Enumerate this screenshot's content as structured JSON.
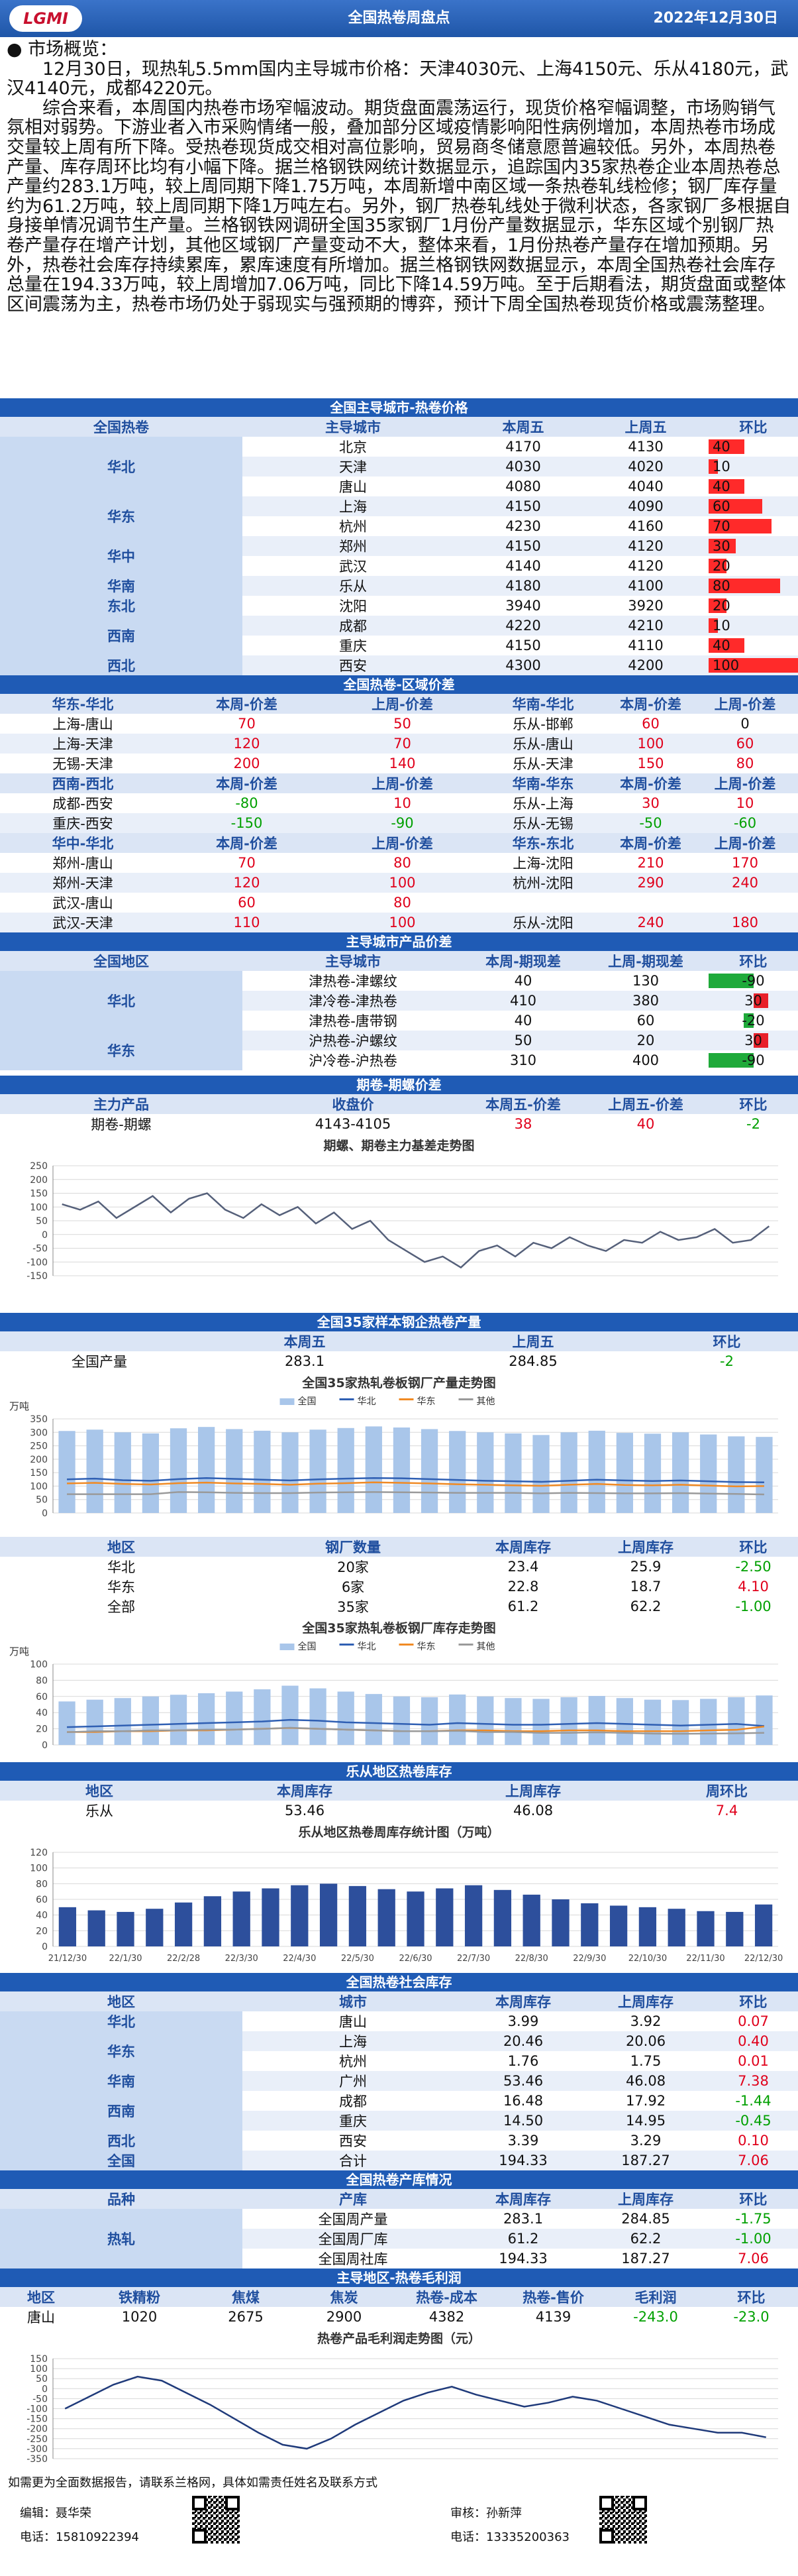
{
  "header": {
    "logo": "LGMI",
    "title": "全国热卷周盘点",
    "date": "2022年12月30日"
  },
  "overview": {
    "heading": "市场概览：",
    "paragraphs": [
      "12月30日，现热轧5.5mm国内主导城市价格：天津4030元、上海4150元、乐从4180元，武汉4140元，成都4220元。",
      "综合来看，本周国内热卷市场窄幅波动。期货盘面震荡运行，现货价格窄幅调整，市场购销气氛相对弱势。下游业者入市采购情绪一般，叠加部分区域疫情影响阳性病例增加，本周热卷市场成交量较上周有所下降。受热卷现货成交相对高位影响，贸易商冬储意愿普遍较低。另外，本周热卷产量、库存周环比均有小幅下降。据兰格钢铁网统计数据显示，追踪国内35家热卷企业本周热卷总产量约283.1万吨，较上周同期下降1.75万吨，本周新增中南区域一条热卷轧线检修；钢厂库存量约为61.2万吨，较上周同期下降1万吨左右。另外，钢厂热卷轧线处于微利状态，各家钢厂多根据自身接单情况调节生产量。兰格钢铁网调研全国35家钢厂1月份产量数据显示，华东区域个别钢厂热卷产量存在增产计划，其他区域钢厂产量变动不大，整体来看，1月份热卷产量存在增加预期。另外，热卷社会库存持续累库，累库速度有所增加。据兰格钢铁网数据显示，本周全国热卷社会库存总量在194.33万吨，较上周增加7.06万吨，同比下降14.59万吨。至于后期看法，期货盘面或整体区间震荡为主，热卷市场仍处于弱现实与强预期的博弈，预计下周全国热卷现货价格或震荡整理。"
    ]
  },
  "city_prices": {
    "title": "全国主导城市-热卷价格",
    "columns": [
      "全国热卷",
      "主导城市",
      "本周五",
      "上周五",
      "环比"
    ],
    "groups": [
      {
        "region": "华北",
        "rows": [
          [
            "北京",
            4170,
            4130,
            40
          ],
          [
            "天津",
            4030,
            4020,
            10
          ],
          [
            "唐山",
            4080,
            4040,
            40
          ]
        ]
      },
      {
        "region": "华东",
        "rows": [
          [
            "上海",
            4150,
            4090,
            60
          ],
          [
            "杭州",
            4230,
            4160,
            70
          ]
        ]
      },
      {
        "region": "华中",
        "rows": [
          [
            "郑州",
            4150,
            4120,
            30
          ],
          [
            "武汉",
            4140,
            4120,
            20
          ]
        ]
      },
      {
        "region": "华南",
        "rows": [
          [
            "乐从",
            4180,
            4100,
            80
          ]
        ]
      },
      {
        "region": "东北",
        "rows": [
          [
            "沈阳",
            3940,
            3920,
            20
          ]
        ]
      },
      {
        "region": "西南",
        "rows": [
          [
            "成都",
            4220,
            4210,
            10
          ],
          [
            "重庆",
            4150,
            4110,
            40
          ]
        ]
      },
      {
        "region": "西北",
        "rows": [
          [
            "西安",
            4300,
            4200,
            100
          ]
        ]
      }
    ]
  },
  "region_spreads": {
    "title": "全国热卷-区域价差",
    "blocks": [
      {
        "headers": [
          "华东-华北",
          "本周-价差",
          "上周-价差",
          "华南-华北",
          "本周-价差",
          "上周-价差"
        ],
        "left": [
          [
            "上海-唐山",
            70,
            50
          ],
          [
            "上海-天津",
            120,
            70
          ],
          [
            "无锡-天津",
            200,
            140
          ]
        ],
        "right": [
          [
            "乐从-邯郸",
            60,
            0
          ],
          [
            "乐从-唐山",
            100,
            60
          ],
          [
            "乐从-天津",
            150,
            80
          ]
        ]
      },
      {
        "headers": [
          "西南-西北",
          "本周-价差",
          "上周-价差",
          "华南-华东",
          "本周-价差",
          "上周-价差"
        ],
        "left": [
          [
            "成都-西安",
            -80,
            10
          ],
          [
            "重庆-西安",
            -150,
            -90
          ]
        ],
        "right": [
          [
            "乐从-上海",
            30,
            10
          ],
          [
            "乐从-无锡",
            -50,
            -60
          ]
        ]
      },
      {
        "headers": [
          "华中-华北",
          "本周-价差",
          "上周-价差",
          "华东-东北",
          "本周-价差",
          "上周-价差"
        ],
        "left": [
          [
            "郑州-唐山",
            70,
            80
          ],
          [
            "郑州-天津",
            120,
            100
          ],
          [
            "武汉-唐山",
            60,
            80
          ],
          [
            "武汉-天津",
            110,
            100
          ]
        ],
        "right": [
          [
            "上海-沈阳",
            210,
            170
          ],
          [
            "杭州-沈阳",
            290,
            240
          ],
          null,
          [
            "乐从-沈阳",
            240,
            180
          ]
        ]
      }
    ]
  },
  "product_spreads": {
    "title": "主导城市产品价差",
    "columns": [
      "全国地区",
      "主导城市",
      "本周-期现差",
      "上周-期现差",
      "环比"
    ],
    "groups": [
      {
        "region": "华北",
        "rows": [
          [
            "津热卷-津螺纹",
            40,
            130,
            -90
          ],
          [
            "津冷卷-津热卷",
            410,
            380,
            30
          ],
          [
            "津热卷-唐带钢",
            40,
            60,
            -20
          ]
        ]
      },
      {
        "region": "华东",
        "rows": [
          [
            "沪热卷-沪螺纹",
            50,
            20,
            30
          ],
          [
            "沪冷卷-沪热卷",
            310,
            400,
            -90
          ]
        ]
      }
    ]
  },
  "futures_spread": {
    "title": "期卷-期螺价差",
    "columns": [
      "主力产品",
      "收盘价",
      "本周五-价差",
      "上周五-价差",
      "环比"
    ],
    "rows": [
      [
        "期卷-期螺",
        "4143-4105",
        38,
        40,
        -2
      ]
    ],
    "chart": {
      "type": "line",
      "title": "期螺、期卷主力基差走势图",
      "ylim": [
        -150,
        250
      ],
      "yticks": [
        250,
        200,
        150,
        100,
        50,
        0,
        -50,
        -100,
        -150
      ],
      "series": [
        {
          "name": "基差",
          "color": "#55607a",
          "values": [
            110,
            90,
            120,
            60,
            100,
            140,
            80,
            130,
            150,
            90,
            60,
            110,
            70,
            100,
            40,
            80,
            20,
            50,
            -20,
            -60,
            -100,
            -80,
            -120,
            -60,
            -40,
            -80,
            -30,
            -50,
            -10,
            -40,
            -60,
            -20,
            -30,
            10,
            -20,
            -10,
            20,
            -30,
            -20,
            30
          ]
        }
      ]
    }
  },
  "output": {
    "title": "全国35家样本钢企热卷产量",
    "columns": [
      "本周五",
      "上周五",
      "环比"
    ],
    "rows": [
      [
        "全国产量",
        283.1,
        284.85,
        -2
      ]
    ],
    "chart": {
      "type": "bar",
      "title": "全国35家热轧卷板钢厂产量走势图",
      "y_label": "万吨",
      "ylim": [
        0,
        350
      ],
      "yticks": [
        350,
        300,
        250,
        200,
        150,
        100,
        50,
        0
      ],
      "series": [
        {
          "name": "全国",
          "type": "bar",
          "color": "#a9c6ea",
          "values": [
            305,
            310,
            300,
            296,
            315,
            320,
            312,
            306,
            300,
            310,
            316,
            322,
            318,
            312,
            305,
            300,
            296,
            290,
            300,
            306,
            298,
            295,
            300,
            292,
            285,
            283
          ]
        },
        {
          "name": "华北",
          "type": "line",
          "color": "#2f5fb3",
          "values": [
            125,
            128,
            122,
            120,
            126,
            130,
            127,
            124,
            121,
            125,
            128,
            130,
            129,
            126,
            123,
            120,
            118,
            116,
            120,
            124,
            121,
            119,
            121,
            118,
            115,
            114
          ]
        },
        {
          "name": "华东",
          "type": "line",
          "color": "#f08a24",
          "values": [
            110,
            112,
            108,
            106,
            111,
            113,
            110,
            108,
            105,
            109,
            111,
            114,
            112,
            110,
            107,
            105,
            103,
            101,
            105,
            108,
            104,
            103,
            105,
            102,
            99,
            100
          ]
        },
        {
          "name": "其他",
          "type": "line",
          "color": "#9a9a9a",
          "values": [
            70,
            70,
            70,
            70,
            78,
            77,
            75,
            74,
            74,
            76,
            77,
            78,
            77,
            76,
            75,
            75,
            75,
            73,
            75,
            74,
            73,
            73,
            74,
            72,
            71,
            69
          ]
        }
      ]
    }
  },
  "mill_stock": {
    "columns": [
      "地区",
      "钢厂数量",
      "本周库存",
      "上周库存",
      "环比"
    ],
    "rows": [
      [
        "华北",
        "20家",
        23.4,
        25.9,
        "-2.50"
      ],
      [
        "华东",
        "6家",
        22.8,
        18.7,
        "4.10"
      ],
      [
        "全部",
        "35家",
        61.2,
        62.2,
        "-1.00"
      ]
    ],
    "chart": {
      "type": "bar",
      "title": "全国35家热轧卷板钢厂库存走势图",
      "y_label": "万吨",
      "ylim": [
        0,
        100
      ],
      "yticks": [
        100,
        80,
        60,
        40,
        20,
        0
      ],
      "series": [
        {
          "name": "全国",
          "type": "bar",
          "color": "#a9c6ea",
          "values": [
            53.8,
            56,
            58,
            60,
            62.1,
            64,
            66,
            68.8,
            73.3,
            70,
            66,
            63,
            60,
            58.95,
            62.4,
            60,
            58,
            57,
            59,
            60.6,
            58,
            56,
            55.51,
            57,
            59,
            61.2
          ]
        },
        {
          "name": "华北",
          "type": "line",
          "color": "#2f5fb3",
          "values": [
            22,
            23,
            24,
            25,
            26,
            27,
            28,
            29,
            31,
            30,
            28,
            27,
            26,
            25,
            27,
            26,
            25,
            25,
            26,
            27,
            26,
            25,
            24,
            25,
            26,
            23.4
          ]
        },
        {
          "name": "华东",
          "type": "line",
          "color": "#f08a24",
          "values": [
            16,
            16,
            17,
            17,
            18,
            18,
            19,
            20,
            21,
            20,
            19,
            18,
            17,
            17,
            18,
            18,
            17,
            17,
            18,
            18,
            17,
            17,
            17,
            18,
            18.7,
            22.8
          ]
        },
        {
          "name": "其他",
          "type": "line",
          "color": "#9a9a9a",
          "values": [
            15.8,
            17,
            17,
            18,
            18.1,
            19,
            19,
            19.8,
            21.3,
            20,
            19,
            18,
            17,
            16.95,
            17.4,
            16,
            16,
            15,
            15,
            15.6,
            15,
            14,
            13.8,
            14,
            14.3,
            15
          ]
        }
      ]
    }
  },
  "lecong_stock": {
    "title": "乐从地区热卷库存",
    "columns": [
      "地区",
      "本周库存",
      "上周库存",
      "周环比"
    ],
    "rows": [
      [
        "乐从",
        53.46,
        46.08,
        7.4
      ]
    ],
    "chart": {
      "type": "bar",
      "title": "乐从地区热卷周库存统计图（万吨）",
      "ylim": [
        0,
        120
      ],
      "yticks": [
        120,
        100,
        80,
        60,
        40,
        20,
        0
      ],
      "categories": [
        "21/12/30",
        null,
        "22/1/30",
        null,
        "22/2/28",
        null,
        "22/3/30",
        null,
        "22/4/30",
        null,
        "22/5/30",
        null,
        "22/6/30",
        null,
        "22/7/30",
        null,
        "22/8/30",
        null,
        "22/9/30",
        null,
        "22/10/30",
        null,
        "22/11/30",
        null,
        "22/12/30"
      ],
      "series": [
        {
          "name": "乐从",
          "type": "bar",
          "color": "#2d4f9c",
          "values": [
            50,
            46,
            44,
            48,
            56,
            64,
            70,
            74,
            78,
            80,
            77,
            73,
            70,
            74,
            78,
            72,
            66,
            60,
            55,
            52,
            50,
            48,
            45,
            44,
            53.46
          ]
        }
      ]
    }
  },
  "social_stock": {
    "title": "全国热卷社会库存",
    "columns": [
      "地区",
      "城市",
      "本周库存",
      "上周库存",
      "环比"
    ],
    "groups": [
      {
        "region": "华北",
        "rows": [
          [
            "唐山",
            3.99,
            3.92,
            0.07
          ]
        ]
      },
      {
        "region": "华东",
        "rows": [
          [
            "上海",
            20.46,
            20.06,
            "0.40"
          ],
          [
            "杭州",
            1.76,
            1.75,
            0.01
          ]
        ]
      },
      {
        "region": "华南",
        "rows": [
          [
            "广州",
            53.46,
            46.08,
            7.38
          ]
        ]
      },
      {
        "region": "西南",
        "rows": [
          [
            "成都",
            16.48,
            17.92,
            -1.44
          ],
          [
            "重庆",
            "14.50",
            14.95,
            -0.45
          ]
        ]
      },
      {
        "region": "西北",
        "rows": [
          [
            "西安",
            3.39,
            3.29,
            "0.10"
          ]
        ]
      },
      {
        "region": "全国",
        "rows": [
          [
            "合计",
            194.33,
            187.27,
            7.06
          ]
        ]
      }
    ]
  },
  "supply_stock": {
    "title": "全国热卷产库情况",
    "columns": [
      "品种",
      "产库",
      "本周库存",
      "上周库存",
      "环比"
    ],
    "groups": [
      {
        "region": "热轧",
        "rows": [
          [
            "全国周产量",
            283.1,
            284.85,
            -1.75
          ],
          [
            "全国周厂库",
            61.2,
            62.2,
            "-1.00"
          ],
          [
            "全国周社库",
            194.33,
            187.27,
            7.06
          ]
        ]
      }
    ]
  },
  "profit": {
    "title": "主导地区-热卷毛利润",
    "columns": [
      "地区",
      "铁精粉",
      "焦煤",
      "焦炭",
      "热卷-成本",
      "热卷-售价",
      "毛利润",
      "环比"
    ],
    "rows": [
      [
        "唐山",
        1020,
        2675,
        2900,
        4382,
        4139,
        "-243.0",
        "-23.0"
      ]
    ],
    "chart": {
      "type": "line",
      "title": "热卷产品毛利润走势图（元）",
      "ylim": [
        -350,
        150
      ],
      "yticks": [
        150,
        100,
        50,
        0,
        -50,
        -100,
        -150,
        -200,
        -250,
        -300,
        -350
      ],
      "series": [
        {
          "name": "毛利润",
          "color": "#1f3a7a",
          "values": [
            -100,
            -40,
            20,
            60,
            40,
            -20,
            -80,
            -150,
            -220,
            -280,
            -300,
            -250,
            -180,
            -120,
            -60,
            -20,
            10,
            -30,
            -60,
            -90,
            -70,
            -40,
            -60,
            -100,
            -140,
            -180,
            -200,
            -220,
            -220,
            -243
          ]
        }
      ]
    }
  },
  "footer": {
    "note": "如需更为全面数据报告，请联系兰格网，具体如需责任姓名及联系方式",
    "editor": "编辑：聂华荣",
    "editor_phone": "电话：15810922394",
    "reviewer": "审核：孙新萍",
    "reviewer_phone": "电话：13335200363"
  }
}
